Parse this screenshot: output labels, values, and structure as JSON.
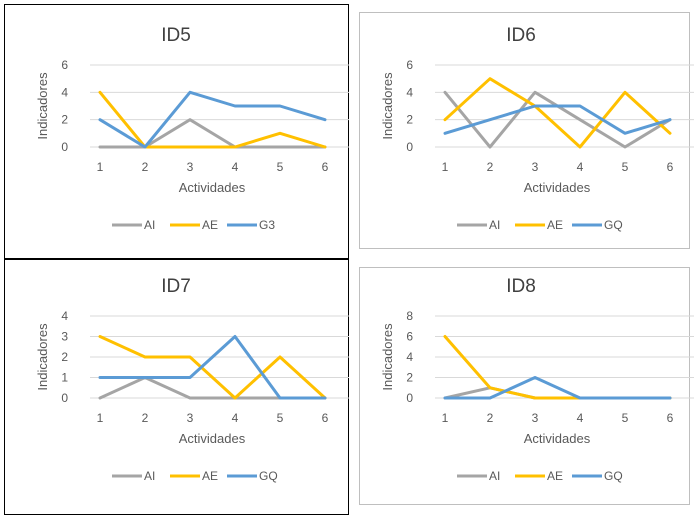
{
  "colors": {
    "AI": "#a5a5a5",
    "AE": "#ffc000",
    "blue": "#5b9bd5",
    "grid": "#d9d9d9",
    "text": "#595959",
    "title": "#404040"
  },
  "chart_data": [
    {
      "type": "line",
      "title": "ID5",
      "xlabel": "Actividades",
      "ylabel": "Indicadores",
      "categories": [
        "1",
        "2",
        "3",
        "4",
        "5",
        "6"
      ],
      "yticks": [
        "0",
        "2",
        "4",
        "6"
      ],
      "ylim": [
        0,
        6
      ],
      "grid": true,
      "legend_position": "bottom",
      "series": [
        {
          "name": "AI",
          "color": "#a5a5a5",
          "values": [
            0,
            0,
            2,
            0,
            0,
            0
          ]
        },
        {
          "name": "AE",
          "color": "#ffc000",
          "values": [
            4,
            0,
            0,
            0,
            1,
            0
          ]
        },
        {
          "name": "G3",
          "color": "#5b9bd5",
          "values": [
            2,
            0,
            4,
            3,
            3,
            2
          ]
        }
      ]
    },
    {
      "type": "line",
      "title": "ID6",
      "xlabel": "Actividades",
      "ylabel": "Indicadores",
      "categories": [
        "1",
        "2",
        "3",
        "4",
        "5",
        "6"
      ],
      "yticks": [
        "0",
        "2",
        "4",
        "6"
      ],
      "ylim": [
        0,
        6
      ],
      "grid": true,
      "legend_position": "bottom",
      "series": [
        {
          "name": "AI",
          "color": "#a5a5a5",
          "values": [
            4,
            0,
            4,
            2,
            0,
            2
          ]
        },
        {
          "name": "AE",
          "color": "#ffc000",
          "values": [
            2,
            5,
            3,
            0,
            4,
            1
          ]
        },
        {
          "name": "GQ",
          "color": "#5b9bd5",
          "values": [
            1,
            2,
            3,
            3,
            1,
            2
          ]
        }
      ]
    },
    {
      "type": "line",
      "title": "ID7",
      "xlabel": "Actividades",
      "ylabel": "Indicadores",
      "categories": [
        "1",
        "2",
        "3",
        "4",
        "5",
        "6"
      ],
      "yticks": [
        "0",
        "1",
        "2",
        "3",
        "4"
      ],
      "ylim": [
        0,
        4
      ],
      "grid": true,
      "legend_position": "bottom",
      "series": [
        {
          "name": "AI",
          "color": "#a5a5a5",
          "values": [
            0,
            1,
            0,
            0,
            0,
            0
          ]
        },
        {
          "name": "AE",
          "color": "#ffc000",
          "values": [
            3,
            2,
            2,
            0,
            2,
            0
          ]
        },
        {
          "name": "GQ",
          "color": "#5b9bd5",
          "values": [
            1,
            1,
            1,
            3,
            0,
            0
          ]
        }
      ]
    },
    {
      "type": "line",
      "title": "ID8",
      "xlabel": "Actividades",
      "ylabel": "Indicadores",
      "categories": [
        "1",
        "2",
        "3",
        "4",
        "5",
        "6"
      ],
      "yticks": [
        "0",
        "2",
        "4",
        "6",
        "8"
      ],
      "ylim": [
        0,
        8
      ],
      "grid": true,
      "legend_position": "bottom",
      "series": [
        {
          "name": "AI",
          "color": "#a5a5a5",
          "values": [
            0,
            1,
            0,
            0,
            0,
            0
          ]
        },
        {
          "name": "AE",
          "color": "#ffc000",
          "values": [
            6,
            1,
            0,
            0,
            0,
            0
          ]
        },
        {
          "name": "GQ",
          "color": "#5b9bd5",
          "values": [
            0,
            0,
            2,
            0,
            0,
            0
          ]
        }
      ]
    }
  ]
}
